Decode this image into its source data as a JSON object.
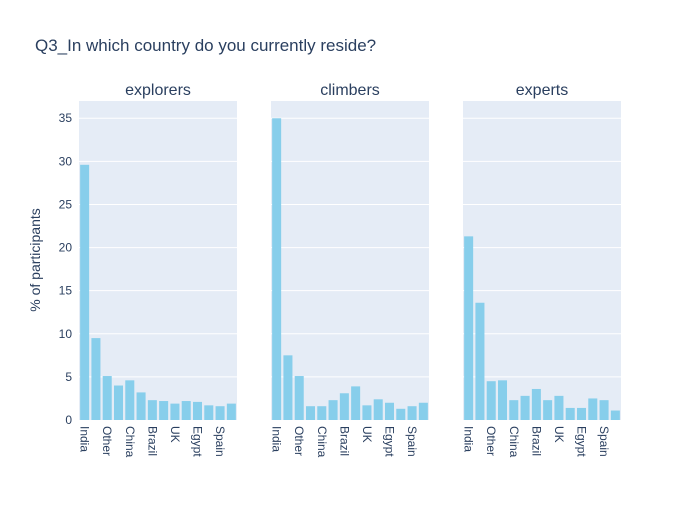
{
  "chart_data": {
    "type": "bar",
    "title": "Q3_In which country do you currently reside?",
    "ylabel": "% of participants",
    "ylim": [
      0,
      37
    ],
    "yticks": [
      0,
      5,
      10,
      15,
      20,
      25,
      30,
      35
    ],
    "grid": true,
    "bar_color": "#87CEEB",
    "plot_bg": "#E5ECF6",
    "categories": [
      "India",
      "Other",
      "China",
      "Brazil",
      "UK",
      "Egypt",
      "Spain"
    ],
    "panels": [
      {
        "title": "explorers",
        "values": [
          29.6,
          9.5,
          5.1,
          4.0,
          4.6,
          3.2,
          2.3,
          2.2,
          1.9,
          2.2,
          2.1,
          1.7,
          1.6,
          1.9
        ]
      },
      {
        "title": "climbers",
        "values": [
          35.0,
          7.5,
          5.1,
          1.6,
          1.6,
          2.3,
          3.1,
          3.9,
          1.7,
          2.4,
          2.0,
          1.3,
          1.6,
          2.0
        ]
      },
      {
        "title": "experts",
        "values": [
          21.3,
          13.6,
          4.5,
          4.6,
          2.3,
          2.8,
          3.6,
          2.3,
          2.8,
          1.4,
          1.4,
          2.5,
          2.3,
          1.1
        ]
      }
    ]
  }
}
